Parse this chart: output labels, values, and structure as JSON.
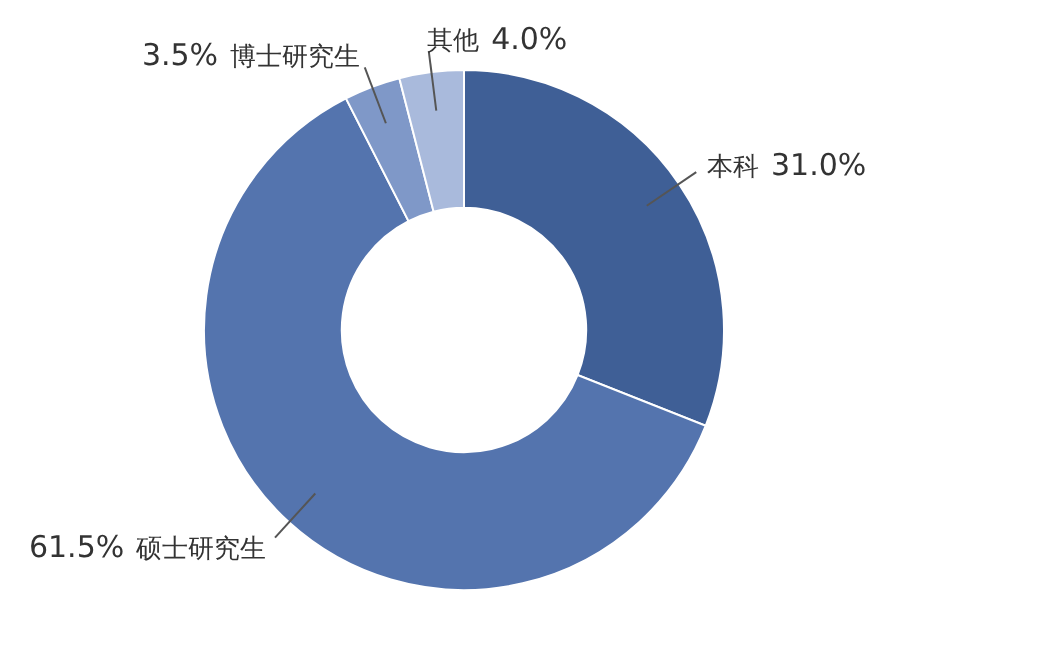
{
  "chart_data": {
    "type": "donut",
    "categories": [
      "本科",
      "硕士研究生",
      "博士研究生",
      "其他"
    ],
    "values": [
      31.0,
      61.5,
      3.5,
      4.0
    ],
    "value_labels": [
      "31.0%",
      "61.5%",
      "3.5%",
      "4.0%"
    ],
    "colors": [
      "#3f5f96",
      "#5474ae",
      "#7f98c8",
      "#a9badc"
    ]
  }
}
